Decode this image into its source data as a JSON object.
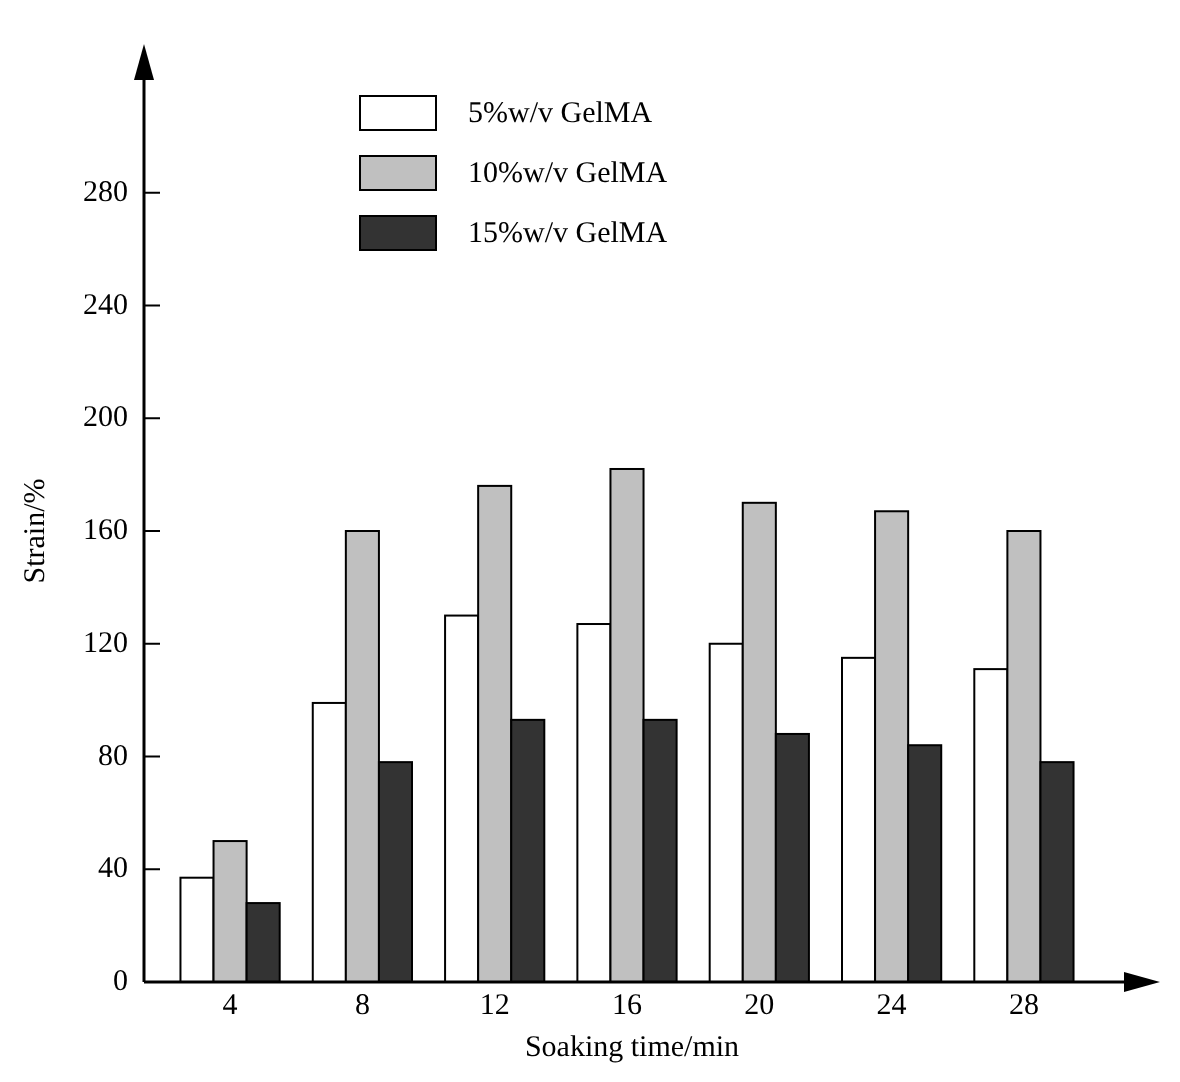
{
  "chart_data": {
    "type": "bar",
    "xlabel": "Soaking time/min",
    "ylabel": "Strain/%",
    "categories": [
      "4",
      "8",
      "12",
      "16",
      "20",
      "24",
      "28"
    ],
    "series": [
      {
        "name": "5%w/v GelMA",
        "color": "#ffffff",
        "values": [
          37,
          99,
          130,
          127,
          120,
          115,
          111
        ]
      },
      {
        "name": "10%w/v GelMA",
        "color": "#c0c0c0",
        "values": [
          50,
          160,
          176,
          182,
          170,
          167,
          160
        ]
      },
      {
        "name": "15%w/v GelMA",
        "color": "#333333",
        "values": [
          28,
          78,
          93,
          93,
          88,
          84,
          78
        ]
      }
    ],
    "ylim": [
      0,
      320
    ],
    "yticks": [
      0,
      40,
      80,
      120,
      160,
      200,
      240,
      280
    ],
    "grid": false,
    "legend": "top"
  }
}
